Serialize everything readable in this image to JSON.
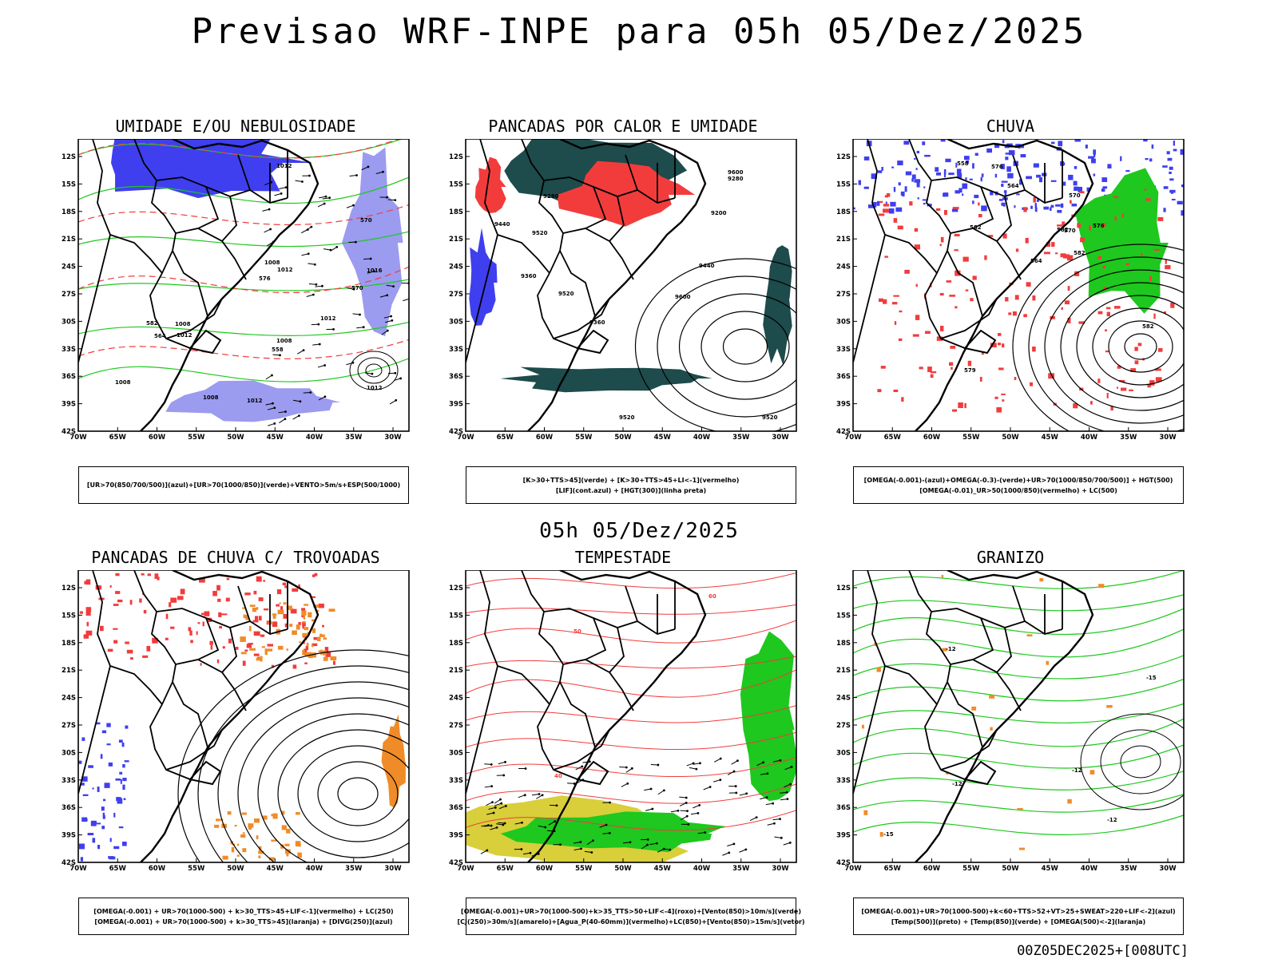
{
  "header": {
    "title": "Previsao WRF-INPE  para 05h 05/Dez/2025"
  },
  "middle": {
    "title": "05h 05/Dez/2025"
  },
  "footer": {
    "run": "00Z05DEC2025+[008UTC]"
  },
  "axes": {
    "lat_labels": [
      "12S",
      "15S",
      "18S",
      "21S",
      "24S",
      "27S",
      "30S",
      "33S",
      "36S",
      "39S",
      "42S"
    ],
    "lon_labels": [
      "70W",
      "65W",
      "60W",
      "55W",
      "50W",
      "45W",
      "40W",
      "35W",
      "30W"
    ]
  },
  "colors": {
    "blue": "#3f3fef",
    "light_blue": "#9b9bf0",
    "green": "#1ec81e",
    "red": "#f23c3c",
    "dark_teal": "#1e4b4b",
    "orange": "#f08c28",
    "yellow": "#d8cf3a"
  },
  "panels": [
    {
      "title": "UMIDADE E/OU NEBULOSIDADE",
      "legend": [
        "[UR>70(850/700/500)](azul)+[UR>70(1000/850)](verde)+VENTO>5m/s+ESP(500/1000)"
      ],
      "contour_labels": [
        "1008",
        "1008",
        "1012",
        "1012",
        "1016",
        "1012",
        "1012",
        "1012",
        "1008",
        "1012",
        "1008",
        "1008",
        "570",
        "576",
        "582",
        "570",
        "564",
        "558"
      ]
    },
    {
      "title": "PANCADAS POR CALOR E UMIDADE",
      "legend": [
        "[K>30+TTS>45](verde) + [K>30+TTS>45+LI<-1](vermelho)",
        "[LIF](cont.azul) + [HGT(300)](linha preta)"
      ],
      "contour_labels": [
        "9600",
        "9600",
        "9520",
        "9520",
        "9440",
        "9360",
        "9280",
        "9520",
        "9440",
        "9360",
        "9280",
        "9200",
        "9520"
      ]
    },
    {
      "title": "CHUVA",
      "legend": [
        "[OMEGA(-0.001)-(azul)+OMEGA(-0.3)-(verde)+UR>70(1000/850/700/500)] + HGT(500)",
        "[OMEGA(-0.01)_UR>50(1000/850)(vermelho) + LC(500)"
      ],
      "contour_labels": [
        "582",
        "582",
        "576",
        "570",
        "564",
        "582",
        "576",
        "570",
        "564",
        "558",
        "582",
        "579"
      ]
    },
    {
      "title": "PANCADAS DE CHUVA C/ TROVOADAS",
      "legend": [
        "[OMEGA(-0.001) + UR>70(1000-500) + k>30_TTS>45+LIF<-1](vermelho) + LC(250)",
        "[OMEGA(-0.001) + UR>70(1000-500) + k>30_TTS>45](laranja) + [DIVG(250)](azul)"
      ],
      "contour_labels": []
    },
    {
      "title": "TEMPESTADE",
      "legend": [
        "[OMEGA(-0.001)+UR>70(1000-500)+k>35_TTS>50+LIF<-4](roxo)+[Vento(850)>10m/s](verde)",
        "[CJ(250)>30m/s](amarelo)+[Agua_P(40-60mm)](vermelho)+LC(850)+[Vento(850)>15m/s](vetor)"
      ],
      "contour_labels": [
        "60",
        "40",
        "50"
      ]
    },
    {
      "title": "GRANIZO",
      "legend": [
        "[OMEGA(-0.001)+UR>70(1000-500)+k<60+TTS>52+VT>25+SWEAT>220+LIF<-2](azul)",
        "[Temp(500)](preto) + [Temp(850)](verde) + [OMEGA(500)<-2](laranja)"
      ],
      "contour_labels": [
        "-12",
        "-15",
        "-12",
        "-12",
        "-15",
        "-12"
      ]
    }
  ]
}
